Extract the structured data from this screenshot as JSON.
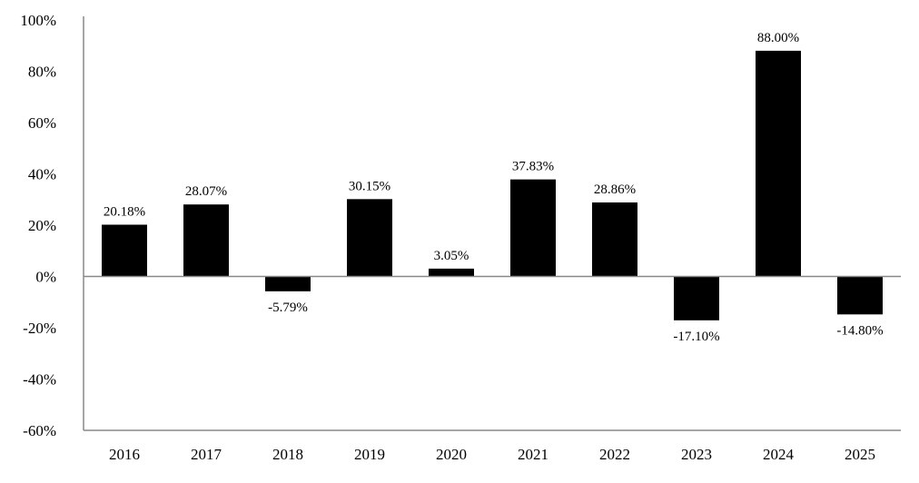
{
  "chart_data": {
    "type": "bar",
    "title": "",
    "xlabel": "",
    "ylabel": "",
    "categories": [
      "2016",
      "2017",
      "2018",
      "2019",
      "2020",
      "2021",
      "2022",
      "2023",
      "2024",
      "2025"
    ],
    "values": [
      20.18,
      28.07,
      -5.79,
      30.15,
      3.05,
      37.83,
      28.86,
      -17.1,
      88.0,
      -14.8
    ],
    "data_labels": [
      "20.18%",
      "28.07%",
      "-5.79%",
      "30.15%",
      "3.05%",
      "37.83%",
      "28.86%",
      "-17.10%",
      "88.00%",
      "-14.80%"
    ],
    "ylim": [
      -60,
      100
    ],
    "yticks": [
      100,
      80,
      60,
      40,
      20,
      0,
      -20,
      -40,
      -60
    ],
    "ytick_labels": [
      "100%",
      "80%",
      "60%",
      "40%",
      "20%",
      "0%",
      "-20%",
      "-40%",
      "-60%"
    ],
    "grid": false,
    "legend": "none",
    "bar_color": "#000000"
  }
}
